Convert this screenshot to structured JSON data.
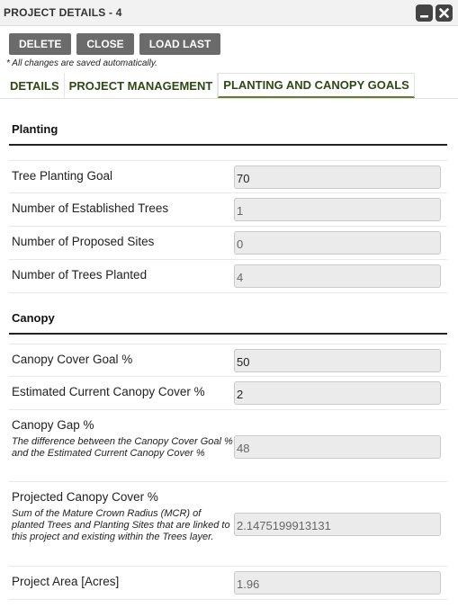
{
  "window": {
    "title": "PROJECT DETAILS - 4",
    "minimize_icon": "minimize-icon",
    "close_icon": "close-icon"
  },
  "toolbar": {
    "delete_label": "DELETE",
    "close_label": "CLOSE",
    "load_last_label": "LOAD LAST"
  },
  "note": "* All changes are saved automatically.",
  "tabs": [
    {
      "label": "DETAILS",
      "active": false
    },
    {
      "label": "PROJECT MANAGEMENT",
      "active": false
    },
    {
      "label": "PLANTING AND CANOPY GOALS",
      "active": true
    }
  ],
  "planting": {
    "heading": "Planting",
    "rows": [
      {
        "label": "Tree Planting Goal",
        "value": "70"
      },
      {
        "label": "Number of Established Trees",
        "value": "1"
      },
      {
        "label": "Number of Proposed Sites",
        "value": "0"
      },
      {
        "label": "Number of Trees Planted",
        "value": "4"
      }
    ]
  },
  "canopy": {
    "heading": "Canopy",
    "rows": [
      {
        "label": "Canopy Cover Goal %",
        "value": "50"
      },
      {
        "label": "Estimated Current Canopy Cover %",
        "value": "2"
      },
      {
        "label": "Canopy Gap %",
        "description": "The difference between the Canopy Cover Goal % and the Estimated Current Canopy Cover %",
        "value": "48"
      },
      {
        "label": "Projected Canopy Cover %",
        "description": "Sum of the Mature Crown Radius (MCR) of planted Trees and Planting Sites that are linked to this project and existing within the Trees layer.",
        "value": "2.1475199913131"
      },
      {
        "label": "Project Area [Acres]",
        "value": "1.96"
      }
    ]
  }
}
